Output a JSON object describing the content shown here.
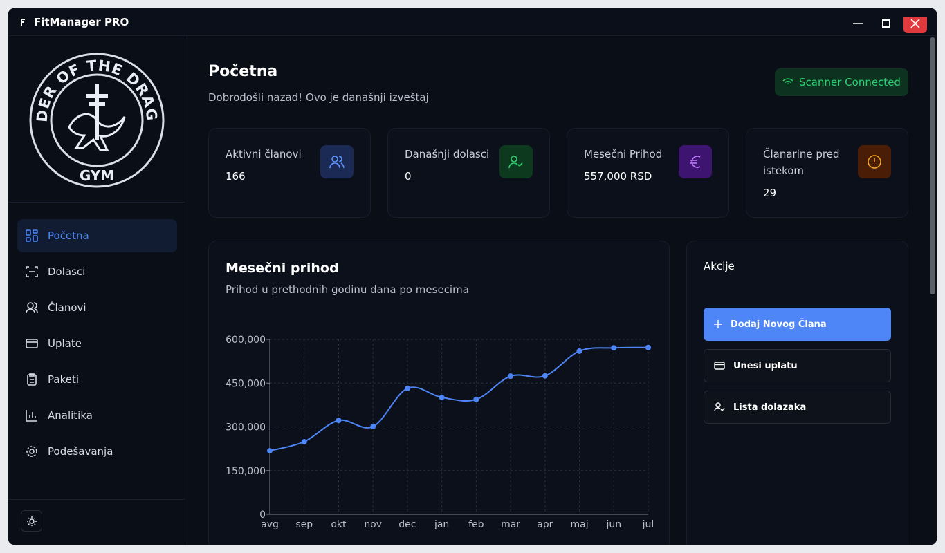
{
  "window": {
    "title": "FitManager PRO"
  },
  "sidebar": {
    "logo_top": "ORDER OF THE DRAGON",
    "logo_bottom": "GYM",
    "nav": [
      "Početna",
      "Dolasci",
      "Članovi",
      "Uplate",
      "Paketi",
      "Analitika",
      "Podešavanja"
    ]
  },
  "header": {
    "title": "Početna",
    "subtitle": "Dobrodošli nazad! Ovo je današnji izveštaj",
    "status": "Scanner Connected"
  },
  "stats": [
    {
      "label": "Aktivni članovi",
      "value": 166
    },
    {
      "label": "Današnji dolasci",
      "value": 0
    },
    {
      "label": "Mesečni Prihod",
      "value": "557,000 RSD"
    },
    {
      "label": "Članarine pred istekom",
      "value": 29
    }
  ],
  "actions": {
    "title": "Akcije",
    "buttons": [
      "Dodaj Novog Člana",
      "Unesi uplatu",
      "Lista dolazaka"
    ]
  },
  "chart_data": {
    "type": "line",
    "title": "Mesečni prihod",
    "subtitle": "Prihod u prethodnih godinu dana po mesecima",
    "categories": [
      "avg",
      "sep",
      "okt",
      "nov",
      "dec",
      "jan",
      "feb",
      "mar",
      "apr",
      "maj",
      "jun",
      "jul"
    ],
    "values": [
      218000,
      249000,
      322000,
      301000,
      432000,
      401000,
      394000,
      474000,
      475000,
      560000,
      571000,
      572000
    ],
    "color": "#4f86f7",
    "ylim": [
      0,
      600000
    ],
    "yticks": [
      0,
      {
        "value": 150000,
        "label": "150,000"
      },
      {
        "value": 300000,
        "label": "300,000"
      },
      {
        "value": 450000,
        "label": "450,000"
      },
      {
        "value": 600000,
        "label": "600,000"
      }
    ],
    "grid": true
  }
}
